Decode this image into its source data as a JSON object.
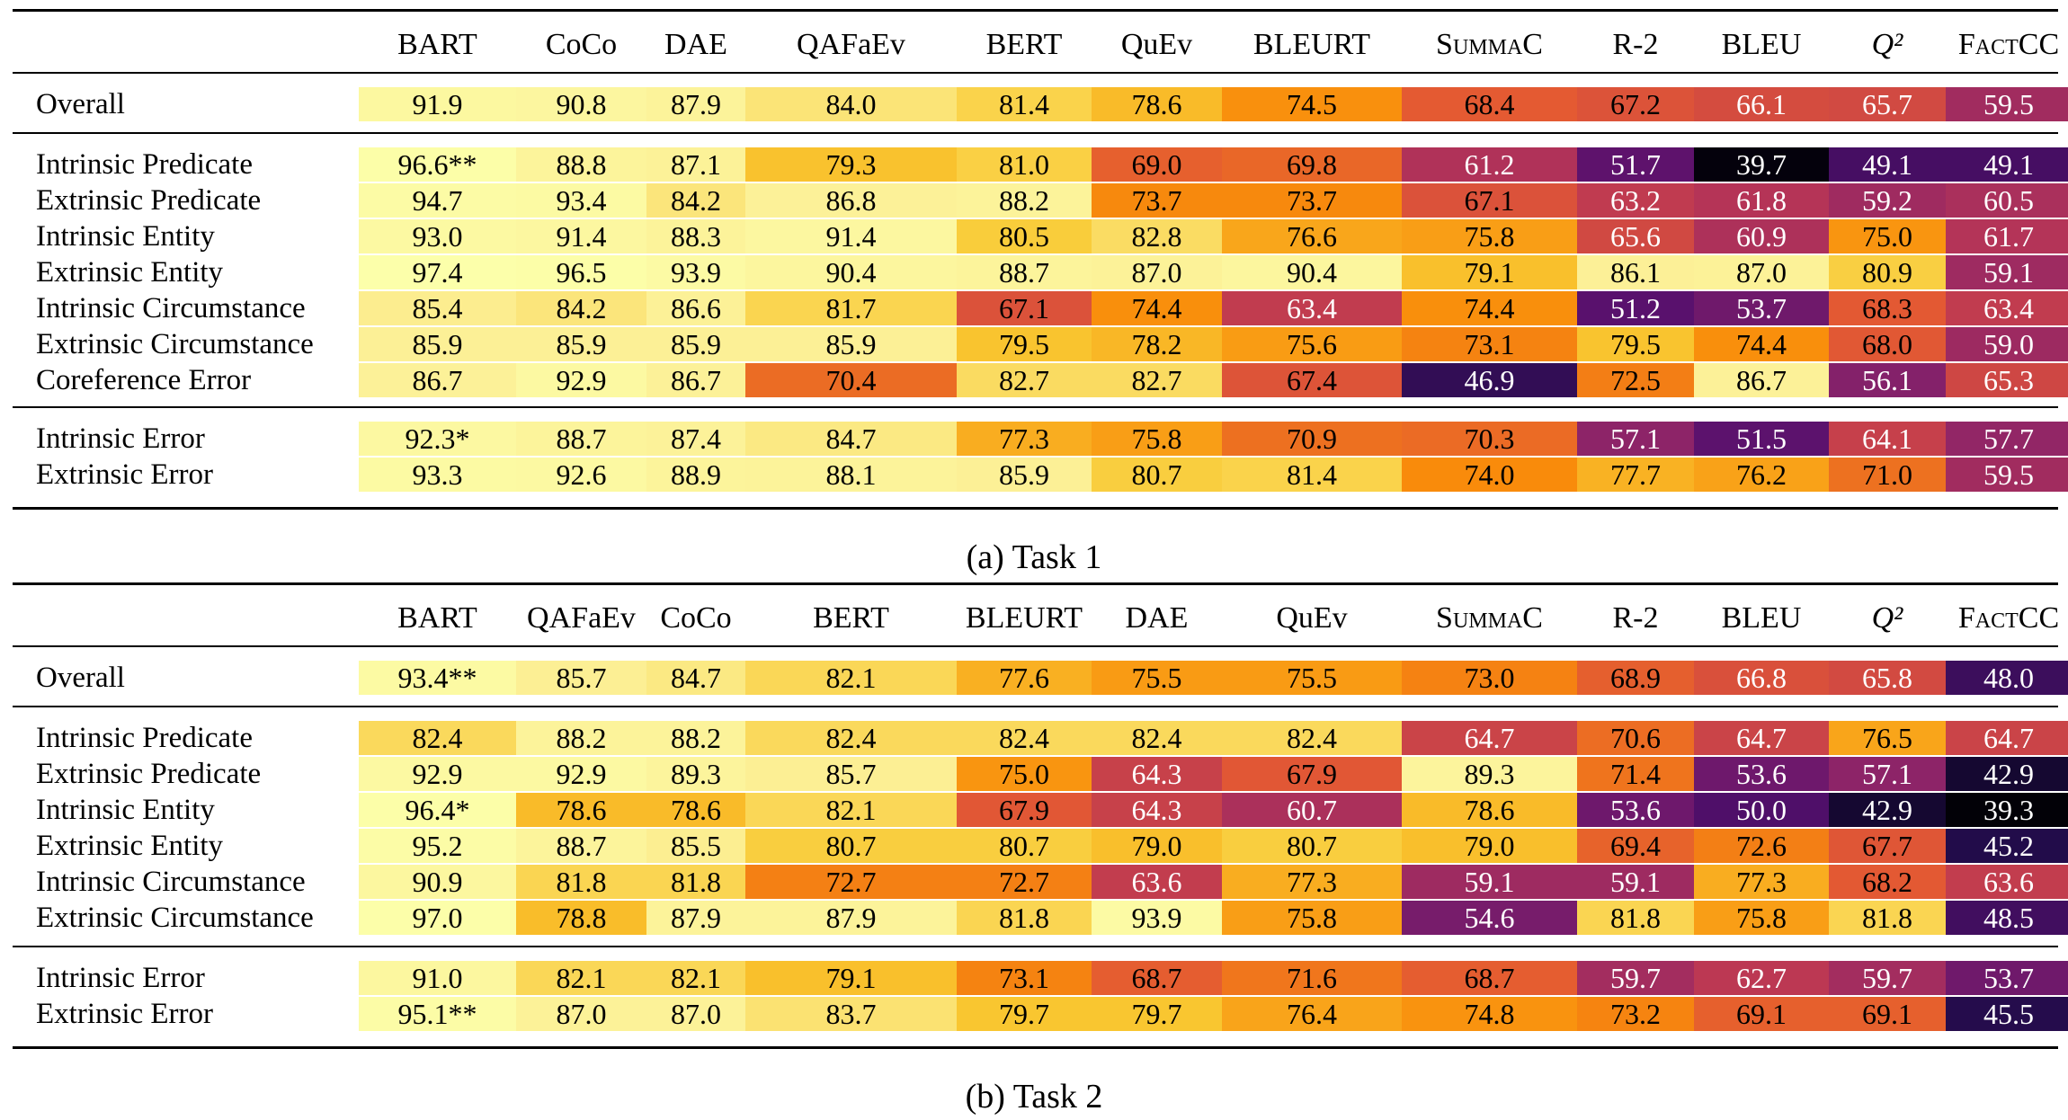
{
  "tables": [
    {
      "caption": "(a) Task 1",
      "columns": [
        "BART",
        "CoCo",
        "DAE",
        "QAFaEv",
        "BERT",
        "QuEv",
        "BLEURT",
        "SummaC",
        "R-2",
        "BLEU",
        "Q²",
        "FactCC"
      ],
      "groups": [
        [
          {
            "label": "Overall",
            "values": [
              "91.9",
              "90.8",
              "87.9",
              "84.0",
              "81.4",
              "78.6",
              "74.5",
              "68.4",
              "67.2",
              "66.1",
              "65.7",
              "59.5"
            ]
          }
        ],
        [
          {
            "label": "Intrinsic Predicate",
            "values": [
              "96.6**",
              "88.8",
              "87.1",
              "79.3",
              "81.0",
              "69.0",
              "69.8",
              "61.2",
              "51.7",
              "39.7",
              "49.1",
              "49.1"
            ]
          },
          {
            "label": "Extrinsic Predicate",
            "values": [
              "94.7",
              "93.4",
              "84.2",
              "86.8",
              "88.2",
              "73.7",
              "73.7",
              "67.1",
              "63.2",
              "61.8",
              "59.2",
              "60.5"
            ]
          },
          {
            "label": "Intrinsic Entity",
            "values": [
              "93.0",
              "91.4",
              "88.3",
              "91.4",
              "80.5",
              "82.8",
              "76.6",
              "75.8",
              "65.6",
              "60.9",
              "75.0",
              "61.7"
            ]
          },
          {
            "label": "Extrinsic Entity",
            "values": [
              "97.4",
              "96.5",
              "93.9",
              "90.4",
              "88.7",
              "87.0",
              "90.4",
              "79.1",
              "86.1",
              "87.0",
              "80.9",
              "59.1"
            ]
          },
          {
            "label": "Intrinsic Circumstance",
            "values": [
              "85.4",
              "84.2",
              "86.6",
              "81.7",
              "67.1",
              "74.4",
              "63.4",
              "74.4",
              "51.2",
              "53.7",
              "68.3",
              "63.4"
            ]
          },
          {
            "label": "Extrinsic Circumstance",
            "values": [
              "85.9",
              "85.9",
              "85.9",
              "85.9",
              "79.5",
              "78.2",
              "75.6",
              "73.1",
              "79.5",
              "74.4",
              "68.0",
              "59.0"
            ]
          },
          {
            "label": "Coreference Error",
            "values": [
              "86.7",
              "92.9",
              "86.7",
              "70.4",
              "82.7",
              "82.7",
              "67.4",
              "46.9",
              "72.5",
              "86.7",
              "56.1",
              "65.3"
            ]
          }
        ],
        [
          {
            "label": "Intrinsic Error",
            "values": [
              "92.3*",
              "88.7",
              "87.4",
              "84.7",
              "77.3",
              "75.8",
              "70.9",
              "70.3",
              "57.1",
              "51.5",
              "64.1",
              "57.7"
            ]
          },
          {
            "label": "Extrinsic Error",
            "values": [
              "93.3",
              "92.6",
              "88.9",
              "88.1",
              "85.9",
              "80.7",
              "81.4",
              "74.0",
              "77.7",
              "76.2",
              "71.0",
              "59.5"
            ]
          }
        ]
      ]
    },
    {
      "caption": "(b) Task 2",
      "columns": [
        "BART",
        "QAFaEv",
        "CoCo",
        "BERT",
        "BLEURT",
        "DAE",
        "QuEv",
        "SummaC",
        "R-2",
        "BLEU",
        "Q²",
        "FactCC"
      ],
      "groups": [
        [
          {
            "label": "Overall",
            "values": [
              "93.4**",
              "85.7",
              "84.7",
              "82.1",
              "77.6",
              "75.5",
              "75.5",
              "73.0",
              "68.9",
              "66.8",
              "65.8",
              "48.0"
            ]
          }
        ],
        [
          {
            "label": "Intrinsic Predicate",
            "values": [
              "82.4",
              "88.2",
              "88.2",
              "82.4",
              "82.4",
              "82.4",
              "82.4",
              "64.7",
              "70.6",
              "64.7",
              "76.5",
              "64.7"
            ]
          },
          {
            "label": "Extrinsic Predicate",
            "values": [
              "92.9",
              "92.9",
              "89.3",
              "85.7",
              "75.0",
              "64.3",
              "67.9",
              "89.3",
              "71.4",
              "53.6",
              "57.1",
              "42.9"
            ]
          },
          {
            "label": "Intrinsic Entity",
            "values": [
              "96.4*",
              "78.6",
              "78.6",
              "82.1",
              "67.9",
              "64.3",
              "60.7",
              "78.6",
              "53.6",
              "50.0",
              "42.9",
              "39.3"
            ]
          },
          {
            "label": "Extrinsic Entity",
            "values": [
              "95.2",
              "88.7",
              "85.5",
              "80.7",
              "80.7",
              "79.0",
              "80.7",
              "79.0",
              "69.4",
              "72.6",
              "67.7",
              "45.2"
            ]
          },
          {
            "label": "Intrinsic Circumstance",
            "values": [
              "90.9",
              "81.8",
              "81.8",
              "72.7",
              "72.7",
              "63.6",
              "77.3",
              "59.1",
              "59.1",
              "77.3",
              "68.2",
              "63.6"
            ]
          },
          {
            "label": "Extrinsic Circumstance",
            "values": [
              "97.0",
              "78.8",
              "87.9",
              "87.9",
              "81.8",
              "93.9",
              "75.8",
              "54.6",
              "81.8",
              "75.8",
              "81.8",
              "48.5"
            ]
          }
        ],
        [
          {
            "label": "Intrinsic Error",
            "values": [
              "91.0",
              "82.1",
              "82.1",
              "79.1",
              "73.1",
              "68.7",
              "71.6",
              "68.7",
              "59.7",
              "62.7",
              "59.7",
              "53.7"
            ]
          },
          {
            "label": "Extrinsic Error",
            "values": [
              "95.1**",
              "87.0",
              "87.0",
              "83.7",
              "79.7",
              "79.7",
              "76.4",
              "74.8",
              "73.2",
              "69.1",
              "69.1",
              "45.5"
            ]
          }
        ]
      ]
    }
  ]
}
